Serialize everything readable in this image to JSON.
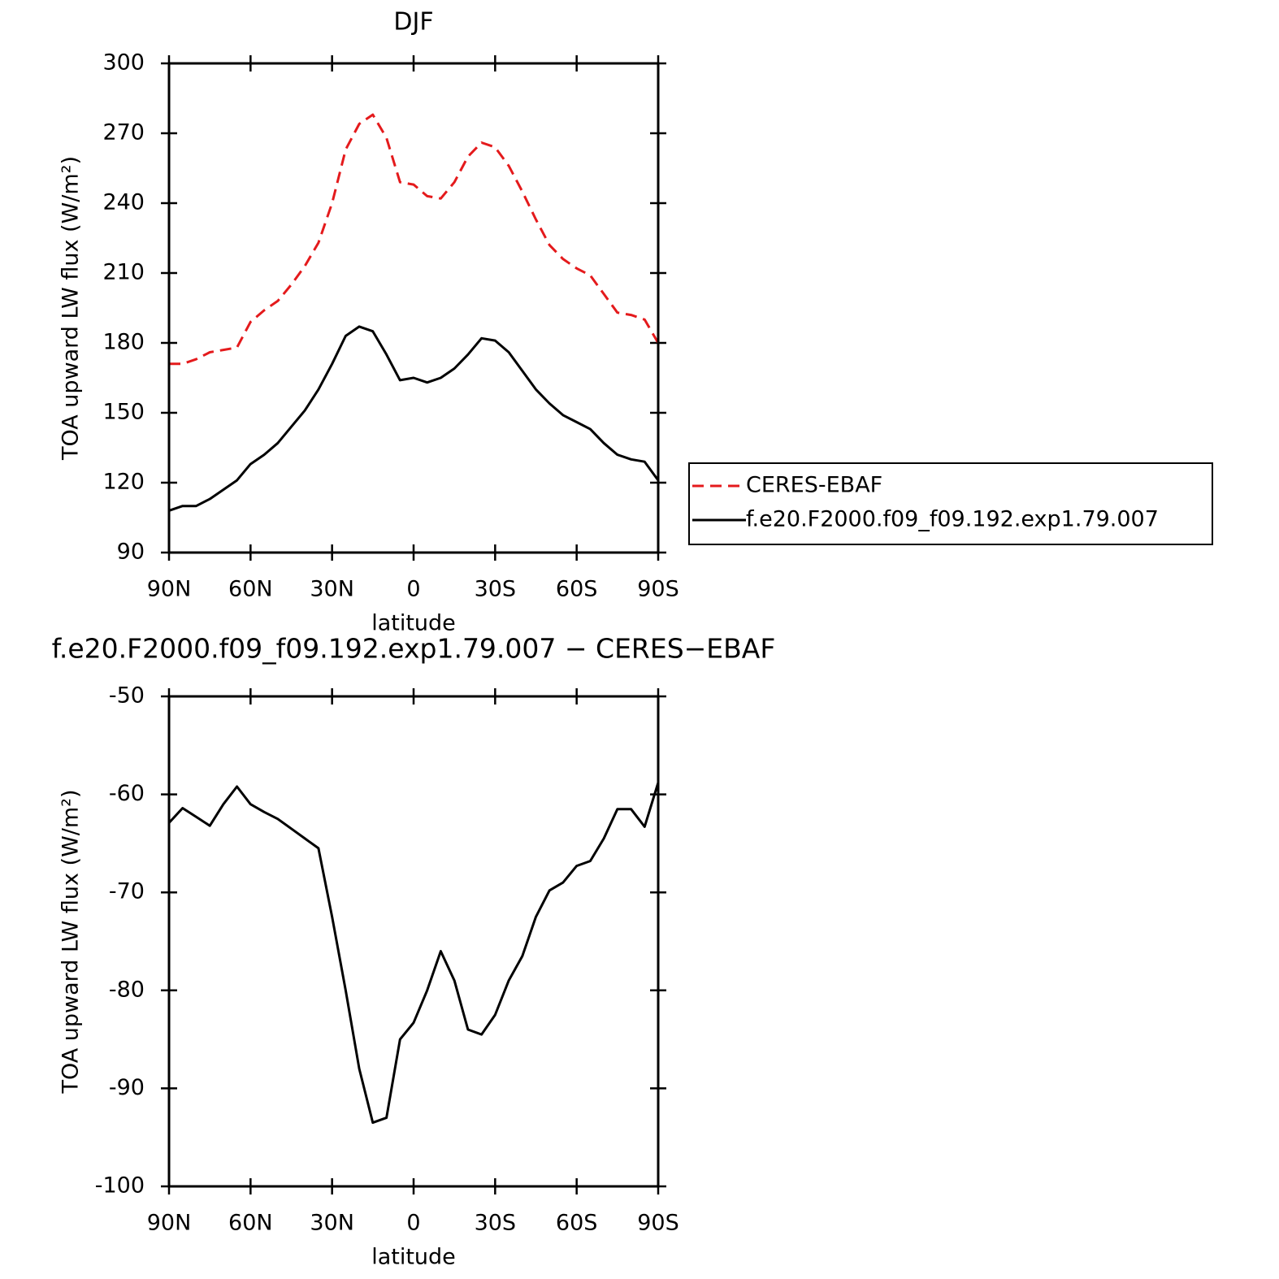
{
  "chart_data": [
    {
      "type": "line",
      "title": "DJF",
      "xlabel": "latitude",
      "ylabel": "TOA upward LW flux (W/m²)",
      "x": [
        90,
        85,
        80,
        75,
        70,
        65,
        60,
        55,
        50,
        45,
        40,
        35,
        30,
        25,
        20,
        15,
        10,
        5,
        0,
        -5,
        -10,
        -15,
        -20,
        -25,
        -30,
        -35,
        -40,
        -45,
        -50,
        -55,
        -60,
        -65,
        -70,
        -75,
        -80,
        -85,
        -90
      ],
      "series": [
        {
          "name": "CERES-EBAF",
          "color": "#e41a1c",
          "dash": true,
          "values": [
            171,
            171,
            173,
            176,
            177,
            178,
            189,
            194,
            198,
            205,
            213,
            223,
            240,
            263,
            274,
            278,
            268,
            249,
            248,
            243,
            242,
            249,
            260,
            266,
            264,
            256,
            245,
            233,
            222,
            216,
            212,
            209,
            201,
            193,
            192,
            190,
            180
          ]
        },
        {
          "name": "f.e20.F2000.f09_f09.192.exp1.79.007",
          "color": "#000000",
          "dash": false,
          "values": [
            108,
            110,
            110,
            113,
            117,
            121,
            128,
            132,
            137,
            144,
            151,
            160,
            171,
            183,
            187,
            185,
            175,
            164,
            165,
            163,
            165,
            169,
            175,
            182,
            181,
            176,
            168,
            160,
            154,
            149,
            146,
            143,
            137,
            132,
            130,
            129,
            121
          ]
        }
      ],
      "xlim": [
        90,
        -90
      ],
      "xticks": [
        {
          "value": 90,
          "label": "90N"
        },
        {
          "value": 60,
          "label": "60N"
        },
        {
          "value": 30,
          "label": "30N"
        },
        0,
        {
          "value": -30,
          "label": "30S"
        },
        {
          "value": -60,
          "label": "60S"
        },
        {
          "value": -90,
          "label": "90S"
        }
      ],
      "ylim": [
        90,
        300
      ],
      "yticks": [
        90,
        120,
        150,
        180,
        210,
        240,
        270,
        300
      ],
      "legend": "right"
    },
    {
      "type": "line",
      "title": "f.e20.F2000.f09_f09.192.exp1.79.007 − CERES−EBAF",
      "xlabel": "latitude",
      "ylabel": "TOA upward LW flux (W/m²)",
      "x": [
        90,
        85,
        80,
        75,
        70,
        65,
        60,
        55,
        50,
        45,
        40,
        35,
        30,
        25,
        20,
        15,
        10,
        5,
        0,
        -5,
        -10,
        -15,
        -20,
        -25,
        -30,
        -35,
        -40,
        -45,
        -50,
        -55,
        -60,
        -65,
        -70,
        -75,
        -80,
        -85,
        -90
      ],
      "series": [
        {
          "color": "#000000",
          "dash": false,
          "values": [
            -62.9,
            -61.4,
            -62.3,
            -63.2,
            -61,
            -59.2,
            -61,
            -61.8,
            -62.5,
            -63.5,
            -64.5,
            -65.5,
            -72.5,
            -80,
            -88,
            -93.5,
            -93,
            -85,
            -83.3,
            -80,
            -76,
            -79,
            -84,
            -84.5,
            -82.5,
            -79,
            -76.5,
            -72.5,
            -69.8,
            -69,
            -67.3,
            -66.8,
            -64.5,
            -61.5,
            -61.5,
            -63.3,
            -58.8
          ]
        }
      ],
      "xlim": [
        90,
        -90
      ],
      "xticks": [
        {
          "value": 90,
          "label": "90N"
        },
        {
          "value": 60,
          "label": "60N"
        },
        {
          "value": 30,
          "label": "30N"
        },
        0,
        {
          "value": -30,
          "label": "30S"
        },
        {
          "value": -60,
          "label": "60S"
        },
        {
          "value": -90,
          "label": "90S"
        }
      ],
      "ylim": [
        -100,
        -50
      ],
      "yticks": [
        -100,
        -90,
        -80,
        -70,
        -60,
        -50
      ]
    }
  ]
}
